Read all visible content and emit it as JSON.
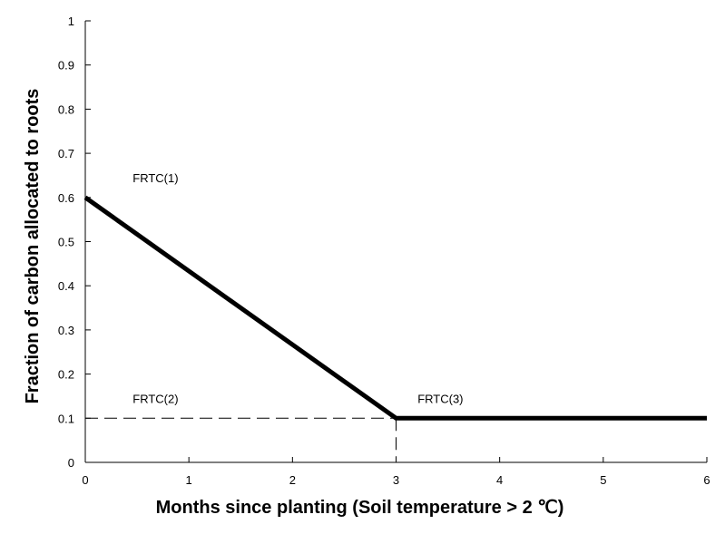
{
  "chart_data": {
    "type": "line",
    "xlabel": "Months since planting (Soil temperature > 2 ℃)",
    "ylabel": "Fraction of carbon allocated to roots",
    "xlim": [
      0,
      6
    ],
    "ylim": [
      0,
      1
    ],
    "x_ticks": [
      "0",
      "1",
      "2",
      "3",
      "4",
      "5",
      "6"
    ],
    "y_ticks": [
      "0",
      "0.1",
      "0.2",
      "0.3",
      "0.4",
      "0.5",
      "0.6",
      "0.7",
      "0.8",
      "0.9",
      "1"
    ],
    "grid": false,
    "legend": "none",
    "series": [
      {
        "x": [
          0,
          3,
          6
        ],
        "y": [
          0.6,
          0.1,
          0.1
        ],
        "color": "#000000",
        "style": "solid"
      }
    ],
    "reference_lines": [
      {
        "style": "dashed",
        "x": [
          0,
          3
        ],
        "y": [
          0.1,
          0.1
        ]
      },
      {
        "style": "dashed",
        "x": [
          3,
          3
        ],
        "y": [
          0.1,
          0
        ]
      }
    ],
    "annotations": [
      {
        "text": "FRTC(1)",
        "x": 0.3,
        "y": 0.6
      },
      {
        "text": "FRTC(2)",
        "x": 0.3,
        "y": 0.1
      },
      {
        "text": "FRTC(3)",
        "x": 3.05,
        "y": 0.1
      }
    ]
  }
}
